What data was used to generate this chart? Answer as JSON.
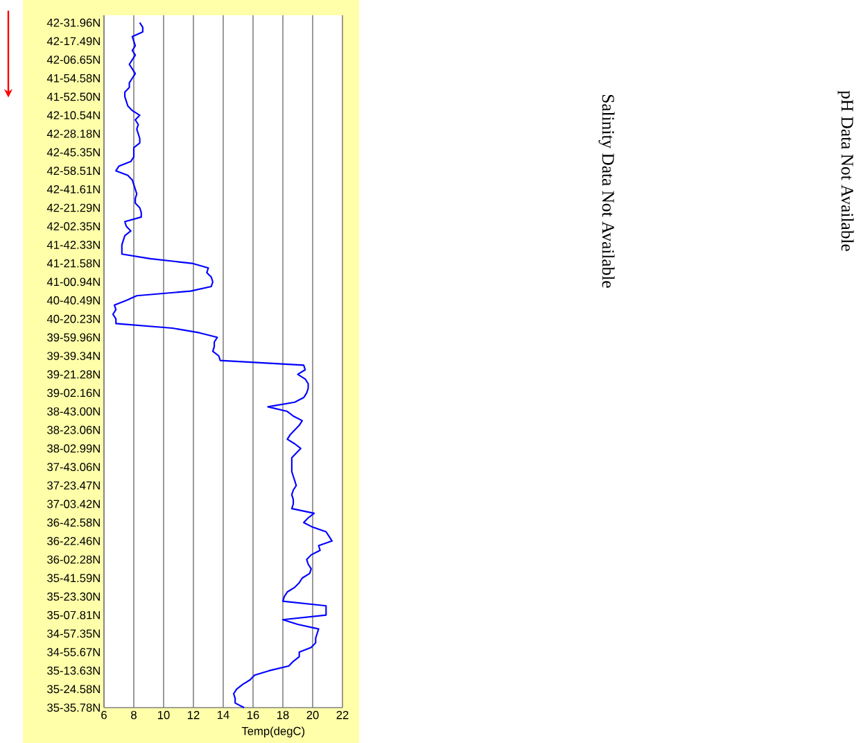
{
  "chart_data": {
    "type": "line",
    "orientation": "horizontal",
    "xlabel": "Temp(degC)",
    "xlim": [
      6,
      22
    ],
    "xticks": [
      6,
      8,
      10,
      12,
      14,
      16,
      18,
      20,
      22
    ],
    "categories": [
      "42-31.96N",
      null,
      null,
      null,
      "42-17.49N",
      null,
      null,
      null,
      "42-06.65N",
      null,
      null,
      null,
      "41-54.58N",
      null,
      null,
      null,
      "41-52.50N",
      null,
      null,
      null,
      "42-10.54N",
      null,
      null,
      null,
      "42-28.18N",
      null,
      null,
      null,
      "42-45.35N",
      null,
      null,
      null,
      "42-58.51N",
      null,
      null,
      null,
      "42-41.61N",
      null,
      null,
      null,
      "42-21.29N",
      null,
      null,
      null,
      "42-02.35N",
      null,
      null,
      null,
      "41-42.33N",
      null,
      null,
      null,
      "41-21.58N",
      null,
      null,
      null,
      "41-00.94N",
      null,
      null,
      null,
      "40-40.49N",
      null,
      null,
      null,
      "40-20.23N",
      null,
      null,
      null,
      "39-59.96N",
      null,
      null,
      null,
      "39-39.34N",
      null,
      null,
      null,
      "39-21.28N",
      null,
      null,
      null,
      "39-02.16N",
      null,
      null,
      null,
      "38-43.00N",
      null,
      null,
      null,
      "38-23.06N",
      null,
      null,
      null,
      "38-02.99N",
      null,
      null,
      null,
      "37-43.06N",
      null,
      null,
      null,
      "37-23.47N",
      null,
      null,
      null,
      "37-03.42N",
      null,
      null,
      null,
      "36-42.58N",
      null,
      null,
      null,
      "36-22.46N",
      null,
      null,
      null,
      "36-02.28N",
      null,
      null,
      null,
      "35-41.59N",
      null,
      null,
      null,
      "35-23.30N",
      null,
      null,
      null,
      "35-07.81N",
      null,
      null,
      null,
      "34-57.35N",
      null,
      null,
      null,
      "34-55.67N",
      null,
      null,
      null,
      "35-13.63N",
      null,
      null,
      null,
      "35-24.58N",
      null,
      null,
      null,
      "35-35.78N"
    ],
    "grid": "x",
    "annotations": [
      "Salinity Data Not Available",
      "pH Data Not Available"
    ],
    "series": [
      {
        "color": "#0000ff",
        "values": [
          8.4,
          8.6,
          8.6,
          7.9,
          8.0,
          8.1,
          7.9,
          8.1,
          7.9,
          7.7,
          7.9,
          8.1,
          7.9,
          7.7,
          7.7,
          7.4,
          7.4,
          7.5,
          7.6,
          7.9,
          8.4,
          8.1,
          8.3,
          8.2,
          8.3,
          8.4,
          8.4,
          8.0,
          8.0,
          8.0,
          7.8,
          7.0,
          6.8,
          7.6,
          7.9,
          8.0,
          8.1,
          8.2,
          8.1,
          8.1,
          8.4,
          8.5,
          8.5,
          7.4,
          7.5,
          7.8,
          7.4,
          7.3,
          7.2,
          7.2,
          7.2,
          9.1,
          11.9,
          13.0,
          12.9,
          13.2,
          13.3,
          13.2,
          11.8,
          8.2,
          7.5,
          6.7,
          6.8,
          6.6,
          6.8,
          6.8,
          10.6,
          12.4,
          13.6,
          13.4,
          13.4,
          13.3,
          13.7,
          13.8,
          19.4,
          19.5,
          19.0,
          19.5,
          19.7,
          19.7,
          19.6,
          19.4,
          18.8,
          17.0,
          18.3,
          18.7,
          19.3,
          19.1,
          18.8,
          18.5,
          18.3,
          18.8,
          19.2,
          18.9,
          18.6,
          18.6,
          18.6,
          18.6,
          18.7,
          18.8,
          18.9,
          18.7,
          18.6,
          18.7,
          18.7,
          18.6,
          20.1,
          19.7,
          19.4,
          20.0,
          20.9,
          21.1,
          21.3,
          20.4,
          20.5,
          19.9,
          19.6,
          19.7,
          19.9,
          19.8,
          19.3,
          19.1,
          18.8,
          18.3,
          18.1,
          18.0,
          20.9,
          20.9,
          20.9,
          18.0,
          19.0,
          20.4,
          20.3,
          20.2,
          20.2,
          19.9,
          19.1,
          19.1,
          18.7,
          18.4,
          17.1,
          16.1,
          15.8,
          15.3,
          14.9,
          14.7,
          14.8,
          14.8,
          15.4
        ]
      }
    ]
  }
}
